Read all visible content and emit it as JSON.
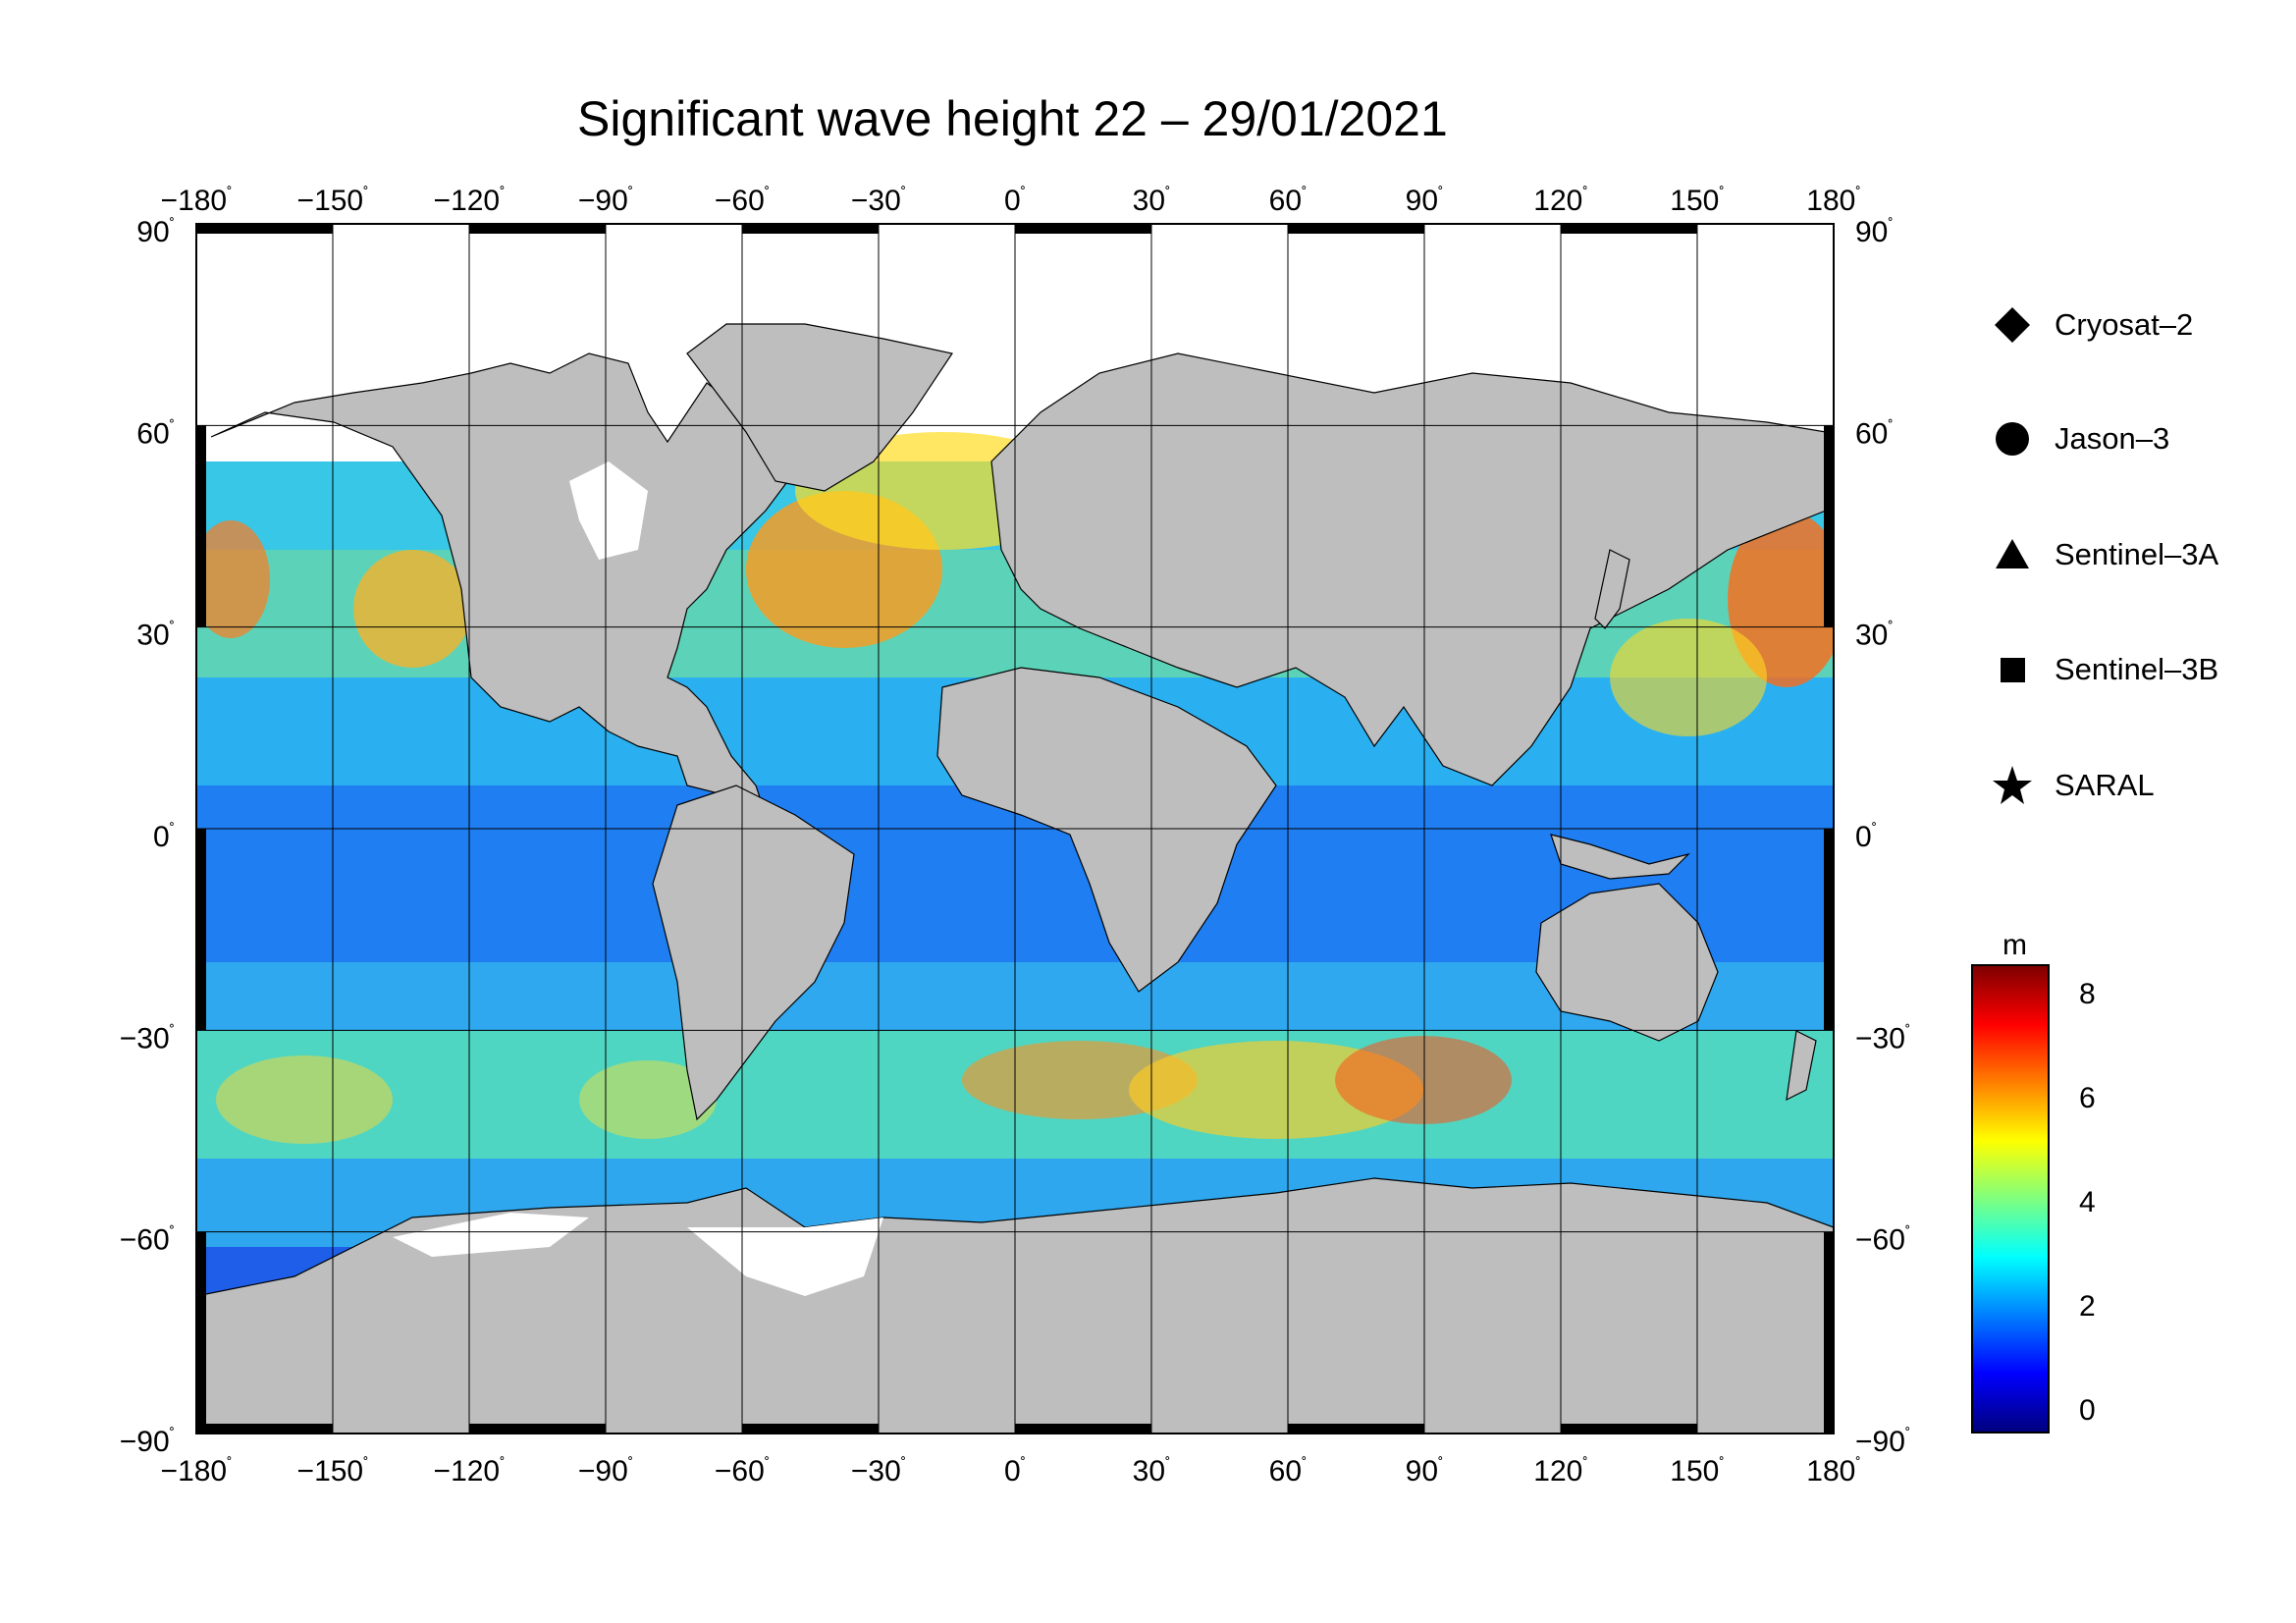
{
  "title": "Significant wave height 22 – 29/01/2021",
  "colors": {
    "land": "#bebebe",
    "ice": "#ffffff",
    "frame": "#000000"
  },
  "lon_labels": [
    "−180",
    "−150",
    "−120",
    "−90",
    "−60",
    "−30",
    "0",
    "30",
    "60",
    "90",
    "120",
    "150",
    "180"
  ],
  "lat_labels": [
    "90",
    "60",
    "30",
    "0",
    "−30",
    "−60",
    "−90"
  ],
  "degree_mark": "˚",
  "legend": {
    "items": [
      {
        "label": "Cryosat–2",
        "icon": "diamond-icon"
      },
      {
        "label": "Jason–3",
        "icon": "circle-icon"
      },
      {
        "label": "Sentinel–3A",
        "icon": "triangle-icon"
      },
      {
        "label": "Sentinel–3B",
        "icon": "square-icon"
      },
      {
        "label": "SARAL",
        "icon": "star-icon"
      }
    ]
  },
  "colorbar": {
    "unit": "m",
    "ticks": [
      "8",
      "6",
      "4",
      "2",
      "0"
    ],
    "colors": [
      "#00007f",
      "#0000ff",
      "#007fff",
      "#00ffff",
      "#7fff7f",
      "#ffff00",
      "#ff7f00",
      "#ff0000",
      "#7f0000"
    ]
  }
}
